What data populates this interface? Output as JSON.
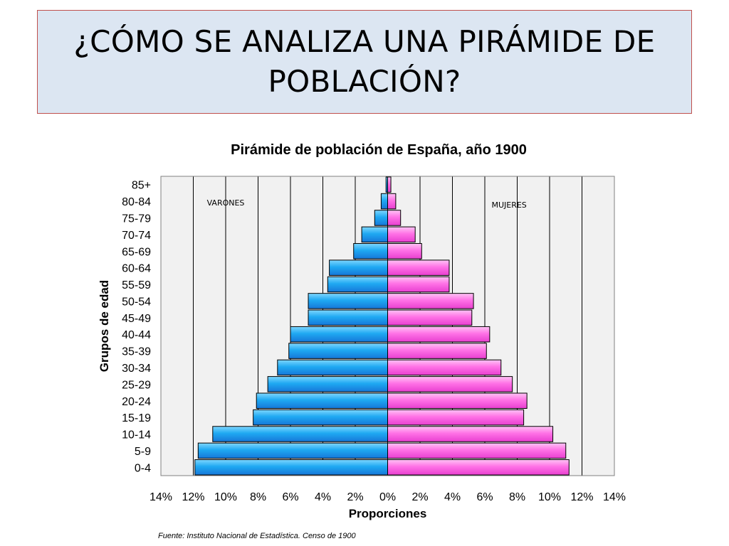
{
  "slide": {
    "title": "¿CÓMO SE ANALIZA UNA PIRÁMIDE DE POBLACIÓN?",
    "source": "Fuente: Instituto Nacional de Estadística. Censo de 1900"
  },
  "colors": {
    "title_bg": "#dce6f2",
    "title_border": "#c0504d",
    "male_bar": "#1fa9f2",
    "female_bar": "#ff72e6",
    "plot_bg": "#f1f1f1"
  },
  "chart_data": {
    "type": "bar",
    "orientation": "horizontal",
    "subtype": "population-pyramid",
    "title": "Pirámide de población de España, año 1900",
    "xlabel": "Proporciones",
    "ylabel": "Grupos de edad",
    "xlim": [
      -14,
      14
    ],
    "xticks": [
      "14%",
      "12%",
      "10%",
      "8%",
      "6%",
      "4%",
      "2%",
      "0%",
      "2%",
      "4%",
      "6%",
      "8%",
      "10%",
      "12%",
      "14%"
    ],
    "grid": true,
    "categories": [
      "0-4",
      "5-9",
      "10-14",
      "15-19",
      "20-24",
      "25-29",
      "30-34",
      "35-39",
      "40-44",
      "45-49",
      "50-54",
      "55-59",
      "60-64",
      "65-69",
      "70-74",
      "75-79",
      "80-84",
      "85+"
    ],
    "series": [
      {
        "name": "VARONES",
        "color": "#1fa9f2",
        "values": [
          11.9,
          11.7,
          10.8,
          8.3,
          8.1,
          7.4,
          6.8,
          6.1,
          6.0,
          4.9,
          4.9,
          3.7,
          3.6,
          2.1,
          1.6,
          0.8,
          0.4,
          0.1
        ]
      },
      {
        "name": "MUJERES",
        "color": "#ff72e6",
        "values": [
          11.2,
          11.0,
          10.2,
          8.4,
          8.6,
          7.7,
          7.0,
          6.1,
          6.3,
          5.2,
          5.3,
          3.8,
          3.8,
          2.1,
          1.7,
          0.8,
          0.5,
          0.2
        ]
      }
    ]
  }
}
